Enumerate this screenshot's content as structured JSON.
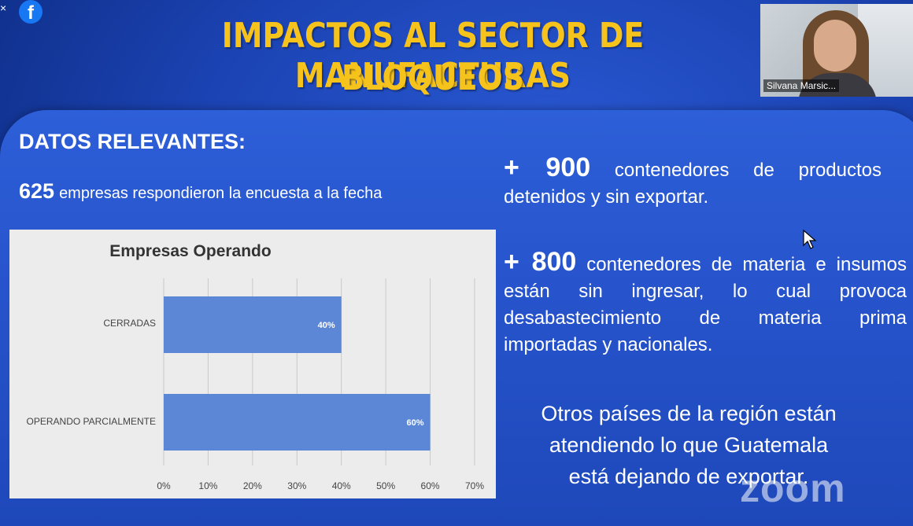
{
  "slide": {
    "title_line1": "IMPACTOS AL SECTOR DE MANUFACTURAS",
    "title_line2": "BLOQUEOS",
    "section_heading": "DATOS RELEVANTES:",
    "respondents_count": "625",
    "respondents_text": "empresas respondieron la encuesta a la fecha",
    "containers_detained_num": "+ 900",
    "containers_detained_text": "contenedores de productos detenidos y sin exportar.",
    "containers_inputs_num": "+ 800",
    "containers_inputs_text": "contenedores de materia e insumos están sin ingresar, lo cual provoca desabastecimiento de materia prima importadas y nacionales.",
    "closing_line1": "Otros países de la región están",
    "closing_line2": "atendiendo lo que Guatemala",
    "closing_line3": "está dejando de exportar."
  },
  "chart_data": {
    "type": "bar",
    "orientation": "horizontal",
    "title": "Empresas Operando",
    "categories": [
      "CERRADAS",
      "OPERANDO PARCIALMENTE"
    ],
    "values": [
      40,
      60
    ],
    "data_labels": [
      "40%",
      "60%"
    ],
    "xticks": [
      "0%",
      "10%",
      "20%",
      "30%",
      "40%",
      "50%",
      "60%",
      "70%"
    ],
    "xlim": [
      0,
      70
    ],
    "grid": true,
    "bar_color": "#5b87d6"
  },
  "meeting": {
    "participant_name": "Silvana Marsic...",
    "app_watermark": "zoom",
    "facebook_icon": "f",
    "close_icon": "×"
  },
  "colors": {
    "title": "#f6c21c",
    "background": "#1b43b3",
    "text": "#ffffff"
  }
}
